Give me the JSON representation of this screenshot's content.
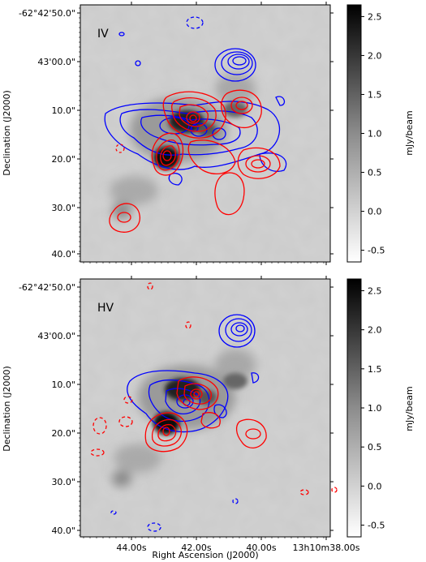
{
  "chart_data": [
    {
      "type": "heatmap",
      "panel_label": "IV",
      "xlabel": "",
      "ylabel": "Declination (J2000)",
      "y_ticks": [
        "-62°42'50.0\"",
        "43'00.0\"",
        "10.0\"",
        "20.0\"",
        "30.0\"",
        "40.0\""
      ],
      "x_ticks": [],
      "colorbar": {
        "label": "mJy/beam",
        "ticks": [
          "2.5",
          "2.0",
          "1.5",
          "1.0",
          "0.5",
          "0.0",
          "-0.5"
        ],
        "range": [
          -0.65,
          2.65
        ]
      },
      "contours": [
        {
          "color": "blue",
          "meaning": "positive & negative contours"
        },
        {
          "color": "red",
          "meaning": "positive & negative contours"
        }
      ]
    },
    {
      "type": "heatmap",
      "panel_label": "HV",
      "xlabel": "Right Ascension (J2000)",
      "ylabel": "Declination (J2000)",
      "y_ticks": [
        "-62°42'50.0\"",
        "43'00.0\"",
        "10.0\"",
        "20.0\"",
        "30.0\"",
        "40.0\""
      ],
      "x_ticks": [
        "44.00s",
        "42.00s",
        "40.00s",
        "13h10m38.00s"
      ],
      "colorbar": {
        "label": "mJy/beam",
        "ticks": [
          "2.5",
          "2.0",
          "1.5",
          "1.0",
          "0.5",
          "0.0",
          "-0.5"
        ],
        "range": [
          -0.65,
          2.65
        ]
      },
      "contours": [
        {
          "color": "blue",
          "meaning": "positive & negative contours"
        },
        {
          "color": "red",
          "meaning": "positive & negative contours"
        }
      ]
    }
  ],
  "colors": {
    "blue": "#0000ff",
    "red": "#ff0000"
  }
}
